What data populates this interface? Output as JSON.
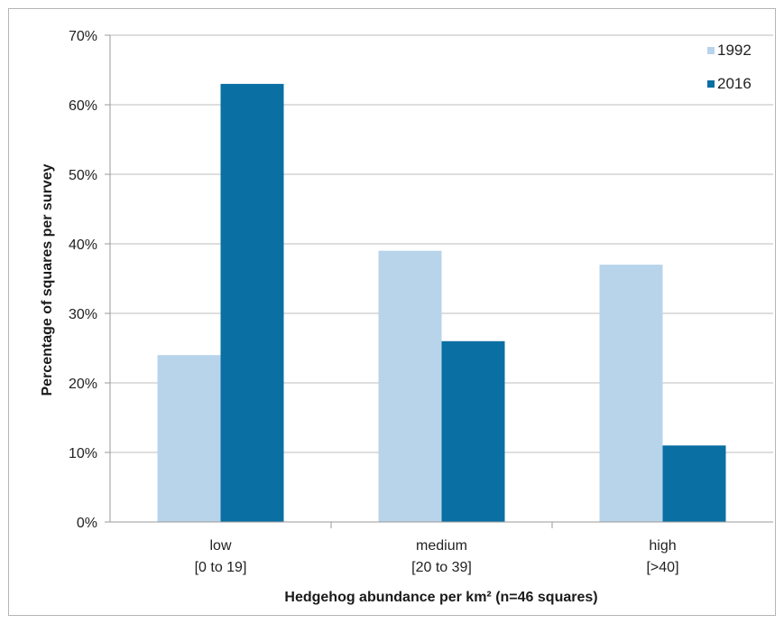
{
  "chart_data": {
    "type": "bar",
    "title": "",
    "xlabel": "Hedgehog abundance per km² (n=46 squares)",
    "ylabel": "Percentage of squares per survey",
    "ylim": [
      0,
      70
    ],
    "yticks": [
      "0%",
      "10%",
      "20%",
      "30%",
      "40%",
      "50%",
      "60%",
      "70%"
    ],
    "grid": true,
    "legend_position": "top-right",
    "categories": [
      {
        "line1": "low",
        "line2": "[0 to 19]"
      },
      {
        "line1": "medium",
        "line2": "[20 to 39]"
      },
      {
        "line1": "high",
        "line2": "[>40]"
      }
    ],
    "series": [
      {
        "name": "1992",
        "color": "#b8d4ea",
        "values": [
          24,
          39,
          37
        ]
      },
      {
        "name": "2016",
        "color": "#0a6fa3",
        "values": [
          63,
          26,
          11
        ]
      }
    ]
  }
}
